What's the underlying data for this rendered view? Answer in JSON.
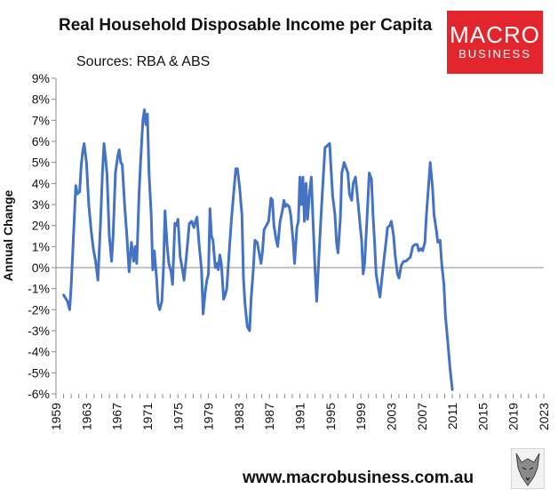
{
  "header": {
    "title": "Real Household Disposable Income per Capita",
    "subtitle": "Sources: RBA & ABS"
  },
  "logo": {
    "line1": "MACRO",
    "line2": "BUSINESS",
    "color": "#e3262e"
  },
  "footer": {
    "url": "www.macrobusiness.com.au",
    "mascot_icon": "wolf-icon"
  },
  "chart_data": {
    "type": "line",
    "title": "Real Household Disposable Income per Capita",
    "xlabel": "",
    "ylabel": "Annual Change",
    "xlim": [
      1959,
      2023
    ],
    "ylim": [
      -6,
      9
    ],
    "y_ticks": [
      "-6%",
      "-5%",
      "-4%",
      "-3%",
      "-2%",
      "-1%",
      "0%",
      "1%",
      "2%",
      "3%",
      "4%",
      "5%",
      "6%",
      "7%",
      "8%",
      "9%"
    ],
    "x_ticks": [
      "1959",
      "1963",
      "1967",
      "1971",
      "1975",
      "1979",
      "1983",
      "1987",
      "1991",
      "1995",
      "1999",
      "2003",
      "2007",
      "2011",
      "2015",
      "2019",
      "2023"
    ],
    "grid": false,
    "series": [
      {
        "color": "#4472c4",
        "points": [
          [
            1960.0,
            -1.3
          ],
          [
            1960.5,
            -1.6
          ],
          [
            1960.8,
            -2.0
          ],
          [
            1961.0,
            -0.8
          ],
          [
            1961.3,
            1.5
          ],
          [
            1961.6,
            3.9
          ],
          [
            1961.8,
            3.5
          ],
          [
            1962.1,
            3.6
          ],
          [
            1962.3,
            4.8
          ],
          [
            1962.5,
            5.5
          ],
          [
            1962.7,
            5.9
          ],
          [
            1963.0,
            5.0
          ],
          [
            1963.3,
            3.0
          ],
          [
            1963.6,
            1.8
          ],
          [
            1963.9,
            0.9
          ],
          [
            1964.2,
            0.3
          ],
          [
            1964.5,
            -0.6
          ],
          [
            1964.8,
            1.8
          ],
          [
            1965.1,
            4.5
          ],
          [
            1965.3,
            5.9
          ],
          [
            1965.5,
            5.2
          ],
          [
            1965.7,
            4.4
          ],
          [
            1966.0,
            1.5
          ],
          [
            1966.3,
            0.3
          ],
          [
            1966.5,
            1.5
          ],
          [
            1966.8,
            4.5
          ],
          [
            1967.1,
            5.3
          ],
          [
            1967.3,
            5.6
          ],
          [
            1967.5,
            5.0
          ],
          [
            1967.7,
            4.9
          ],
          [
            1968.0,
            3.0
          ],
          [
            1968.3,
            1.5
          ],
          [
            1968.6,
            -0.2
          ],
          [
            1968.9,
            1.2
          ],
          [
            1969.2,
            0.3
          ],
          [
            1969.4,
            1.0
          ],
          [
            1969.6,
            0.2
          ],
          [
            1969.9,
            3.5
          ],
          [
            1970.1,
            5.0
          ],
          [
            1970.4,
            7.0
          ],
          [
            1970.6,
            7.5
          ],
          [
            1970.8,
            6.8
          ],
          [
            1971.0,
            7.3
          ],
          [
            1971.2,
            4.5
          ],
          [
            1971.5,
            2.5
          ],
          [
            1971.7,
            -0.1
          ],
          [
            1971.9,
            0.8
          ],
          [
            1972.2,
            -0.5
          ],
          [
            1972.4,
            -1.7
          ],
          [
            1972.6,
            -2.0
          ],
          [
            1972.9,
            -1.6
          ],
          [
            1973.1,
            0.0
          ],
          [
            1973.3,
            2.7
          ],
          [
            1973.6,
            1.0
          ],
          [
            1973.8,
            0.2
          ],
          [
            1974.1,
            -0.2
          ],
          [
            1974.3,
            -0.8
          ],
          [
            1974.6,
            2.1
          ],
          [
            1974.8,
            2.0
          ],
          [
            1975.0,
            2.3
          ],
          [
            1975.3,
            0.5
          ],
          [
            1975.6,
            -0.1
          ],
          [
            1975.8,
            -0.6
          ],
          [
            1976.1,
            0.5
          ],
          [
            1976.3,
            1.3
          ],
          [
            1976.5,
            2.1
          ],
          [
            1976.8,
            2.2
          ],
          [
            1977.1,
            1.9
          ],
          [
            1977.3,
            2.2
          ],
          [
            1977.5,
            2.4
          ],
          [
            1977.8,
            1.0
          ],
          [
            1978.1,
            -0.1
          ],
          [
            1978.3,
            -2.2
          ],
          [
            1978.6,
            -1.1
          ],
          [
            1978.8,
            -0.6
          ],
          [
            1979.0,
            -0.3
          ],
          [
            1979.2,
            2.8
          ],
          [
            1979.4,
            1.5
          ],
          [
            1979.6,
            1.3
          ],
          [
            1979.9,
            0.0
          ],
          [
            1980.1,
            0.2
          ],
          [
            1980.3,
            -0.1
          ],
          [
            1980.5,
            0.6
          ],
          [
            1980.7,
            0.2
          ],
          [
            1981.0,
            -1.5
          ],
          [
            1981.2,
            -1.3
          ],
          [
            1981.4,
            -1.0
          ],
          [
            1981.7,
            0.6
          ],
          [
            1982.0,
            2.2
          ],
          [
            1982.3,
            3.5
          ],
          [
            1982.6,
            4.7
          ],
          [
            1982.8,
            4.7
          ],
          [
            1983.1,
            3.8
          ],
          [
            1983.4,
            2.5
          ],
          [
            1983.6,
            -0.5
          ],
          [
            1983.8,
            -1.7
          ],
          [
            1984.1,
            -2.8
          ],
          [
            1984.4,
            -3.0
          ],
          [
            1984.6,
            -1.5
          ],
          [
            1984.9,
            0.0
          ],
          [
            1985.1,
            1.3
          ],
          [
            1985.4,
            1.2
          ],
          [
            1985.6,
            0.8
          ],
          [
            1985.9,
            0.2
          ],
          [
            1986.1,
            0.8
          ],
          [
            1986.3,
            1.8
          ],
          [
            1986.6,
            2.0
          ],
          [
            1986.9,
            2.2
          ],
          [
            1987.2,
            3.3
          ],
          [
            1987.4,
            3.2
          ],
          [
            1987.6,
            2.0
          ],
          [
            1987.9,
            1.3
          ],
          [
            1988.1,
            1.0
          ],
          [
            1988.4,
            2.2
          ],
          [
            1988.7,
            2.7
          ],
          [
            1988.9,
            3.2
          ],
          [
            1989.1,
            2.9
          ],
          [
            1989.3,
            3.0
          ],
          [
            1989.6,
            2.9
          ],
          [
            1989.8,
            2.5
          ],
          [
            1990.1,
            1.3
          ],
          [
            1990.3,
            0.2
          ],
          [
            1990.6,
            1.9
          ],
          [
            1990.8,
            2.2
          ],
          [
            1991.0,
            4.3
          ],
          [
            1991.2,
            3.0
          ],
          [
            1991.4,
            4.3
          ],
          [
            1991.6,
            2.2
          ],
          [
            1991.8,
            4.0
          ],
          [
            1992.0,
            2.3
          ],
          [
            1992.3,
            3.7
          ],
          [
            1992.5,
            4.3
          ],
          [
            1992.7,
            2.4
          ],
          [
            1993.0,
            -0.2
          ],
          [
            1993.2,
            -1.6
          ],
          [
            1993.5,
            0.5
          ],
          [
            1993.8,
            2.6
          ],
          [
            1994.1,
            4.5
          ],
          [
            1994.3,
            5.7
          ],
          [
            1994.6,
            5.8
          ],
          [
            1994.9,
            5.9
          ],
          [
            1995.1,
            4.6
          ],
          [
            1995.3,
            3.4
          ],
          [
            1995.6,
            2.5
          ],
          [
            1995.8,
            1.2
          ],
          [
            1996.0,
            0.7
          ],
          [
            1996.3,
            2.3
          ],
          [
            1996.5,
            4.5
          ],
          [
            1996.8,
            5.0
          ],
          [
            1997.0,
            4.8
          ],
          [
            1997.3,
            4.5
          ],
          [
            1997.5,
            3.5
          ],
          [
            1997.8,
            3.2
          ],
          [
            1998.0,
            4.0
          ],
          [
            1998.3,
            4.3
          ],
          [
            1998.6,
            3.2
          ],
          [
            1998.9,
            2.0
          ],
          [
            1999.1,
            1.3
          ],
          [
            1999.3,
            -0.3
          ],
          [
            1999.5,
            0.2
          ],
          [
            1999.8,
            2.3
          ],
          [
            2000.1,
            4.5
          ],
          [
            2000.4,
            4.2
          ],
          [
            2000.6,
            2.5
          ],
          [
            2000.8,
            1.2
          ],
          [
            2001.0,
            -0.3
          ],
          [
            2001.3,
            -1.0
          ],
          [
            2001.5,
            -1.4
          ],
          [
            2001.8,
            -0.4
          ],
          [
            2002.1,
            0.6
          ],
          [
            2002.3,
            1.2
          ],
          [
            2002.5,
            1.9
          ],
          [
            2002.8,
            2.0
          ],
          [
            2003.0,
            2.2
          ],
          [
            2003.3,
            1.5
          ],
          [
            2003.5,
            0.6
          ],
          [
            2003.8,
            -0.3
          ],
          [
            2004.0,
            -0.5
          ],
          [
            2004.3,
            0.1
          ],
          [
            2004.6,
            0.3
          ],
          [
            2004.9,
            0.3
          ],
          [
            2005.2,
            0.4
          ],
          [
            2005.5,
            0.5
          ],
          [
            2005.8,
            1.0
          ],
          [
            2006.1,
            1.1
          ],
          [
            2006.4,
            1.1
          ],
          [
            2006.6,
            0.8
          ],
          [
            2006.9,
            0.9
          ],
          [
            2007.1,
            0.8
          ],
          [
            2007.4,
            1.2
          ],
          [
            2007.6,
            2.5
          ],
          [
            2007.9,
            4.0
          ],
          [
            2008.1,
            5.0
          ],
          [
            2008.4,
            3.8
          ],
          [
            2008.6,
            2.5
          ],
          [
            2008.9,
            1.8
          ],
          [
            2009.1,
            1.2
          ],
          [
            2009.4,
            1.3
          ],
          [
            2009.6,
            0.2
          ],
          [
            2009.9,
            -0.8
          ],
          [
            2010.1,
            -2.3
          ],
          [
            2010.4,
            -3.5
          ],
          [
            2010.7,
            -4.8
          ],
          [
            2011.0,
            -5.8
          ]
        ]
      }
    ]
  }
}
